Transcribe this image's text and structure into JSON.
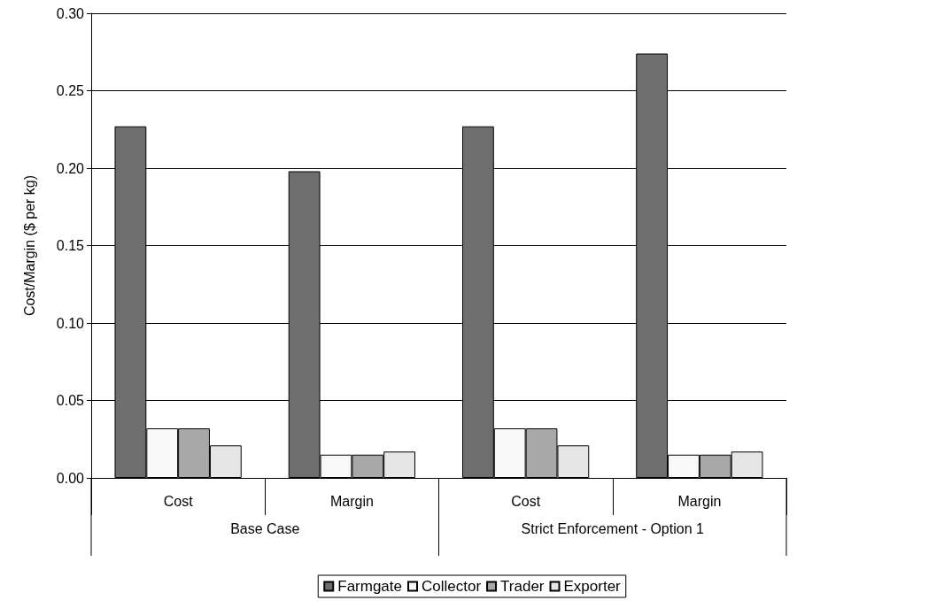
{
  "chart_data": {
    "type": "bar",
    "ylabel": "Cost/Margin ($ per kg)",
    "categories": [
      "Cost",
      "Margin",
      "Cost",
      "Margin"
    ],
    "series": [
      {
        "name": "Farmgate",
        "color": "#6e6e6e",
        "values": [
          0.227,
          0.198,
          0.227,
          0.274
        ]
      },
      {
        "name": "Collector",
        "color": "#f8f8f8",
        "values": [
          0.032,
          0.015,
          0.032,
          0.015
        ]
      },
      {
        "name": "Trader",
        "color": "#a8a8a8",
        "values": [
          0.032,
          0.015,
          0.032,
          0.015
        ]
      },
      {
        "name": "Exporter",
        "color": "#e6e6e6",
        "values": [
          0.021,
          0.017,
          0.021,
          0.017
        ]
      }
    ],
    "ylim": [
      0,
      0.3
    ],
    "yticks": [
      {
        "value": 0,
        "label": "0.00"
      },
      0.05,
      {
        "value": 0.1,
        "label": "0.10"
      },
      0.15,
      {
        "value": 0.2,
        "label": "0.20"
      },
      0.25,
      {
        "value": 0.3,
        "label": "0.30"
      }
    ],
    "grid": "y",
    "legend": "bottom",
    "annotations": [
      "Base Case",
      "Strict Enforcement - Option 1"
    ]
  }
}
